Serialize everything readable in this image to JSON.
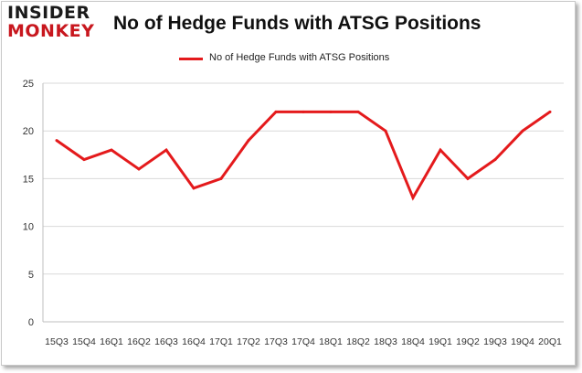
{
  "logo": {
    "line1": "INSIDER",
    "line2": "MONKEY"
  },
  "chart_data": {
    "type": "line",
    "title": "No of Hedge Funds with ATSG Positions",
    "xlabel": "",
    "ylabel": "",
    "categories": [
      "15Q3",
      "15Q4",
      "16Q1",
      "16Q2",
      "16Q3",
      "16Q4",
      "17Q1",
      "17Q2",
      "17Q3",
      "17Q4",
      "18Q1",
      "18Q2",
      "18Q3",
      "18Q4",
      "19Q1",
      "19Q2",
      "19Q3",
      "19Q4",
      "20Q1"
    ],
    "series": [
      {
        "name": "No of Hedge Funds with ATSG Positions",
        "values": [
          19,
          17,
          18,
          16,
          18,
          14,
          15,
          19,
          22,
          22,
          22,
          22,
          20,
          13,
          18,
          15,
          17,
          20,
          22
        ],
        "color": "#e41a1c"
      }
    ],
    "ylim": [
      0,
      25
    ],
    "yticks": [
      0,
      5,
      10,
      15,
      20,
      25
    ],
    "grid": true,
    "legend_position": "top-center"
  }
}
